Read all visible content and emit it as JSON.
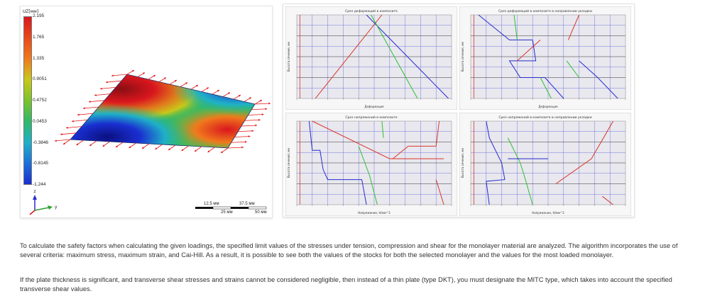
{
  "left_figure": {
    "legend_title": "UZ[мм]",
    "legend_ticks": [
      "2.195",
      "1.765",
      "1.335",
      "0.9051",
      "0.4752",
      "0.0453",
      "-0.3846",
      "-0.8145",
      "-1.244"
    ],
    "legend_colors": [
      "#d9161e",
      "#e8491a",
      "#f07a1c",
      "#c8c81a",
      "#7ac32a",
      "#2fb86a",
      "#1fb0c8",
      "#1c6fd9",
      "#1a2fd0"
    ],
    "axis_z": "z",
    "axis_y": "y",
    "scale_labels": [
      "12.5 мм",
      "37.5 мм",
      "25 мм",
      "50 мм"
    ]
  },
  "plots": [
    {
      "title": "Срез деформаций в композите",
      "xlabel": "Деформация",
      "ylabel": "Высота сечения, мм",
      "colors": {
        "red": "#d9362a",
        "blue": "#2a2ad0",
        "green": "#2fc02f"
      }
    },
    {
      "title": "Срез деформаций в композите в направлении укладки",
      "xlabel": "Деформация",
      "ylabel": "Высота сечения, мм",
      "colors": {
        "red": "#d9362a",
        "blue": "#2a2ad0",
        "green": "#2fc02f"
      }
    },
    {
      "title": "Срез напряжений в композите",
      "xlabel": "Напряжение, Н/мм^2",
      "ylabel": "Высота сечения, мм",
      "colors": {
        "red": "#d9362a",
        "blue": "#2a2ad0",
        "green": "#2fc02f"
      }
    },
    {
      "title": "Срез напряжений в композите в направлении укладки",
      "xlabel": "Напряжение, Н/мм^2",
      "ylabel": "Высота сечения, мм",
      "colors": {
        "red": "#d9362a",
        "blue": "#2a2ad0",
        "green": "#2fc02f"
      }
    }
  ],
  "text": {
    "paragraph_1": "To calculate the safety factors when calculating the given loadings, the specified limit values of the stresses under tension, compression and shear for the monolayer material are analyzed. The algorithm incorporates the use of several criteria: maximum stress, maximum strain, and Cai-Hill. As a result, it is possible to see both the values of the stocks for both the selected monolayer and the values for the most loaded monolayer.",
    "paragraph_2": "If the plate thickness is significant, and transverse shear stresses and strains cannot be considered negligible, then instead of a thin plate (type DKT), you must designate the MITC type, which takes into account the specified transverse shear values."
  }
}
